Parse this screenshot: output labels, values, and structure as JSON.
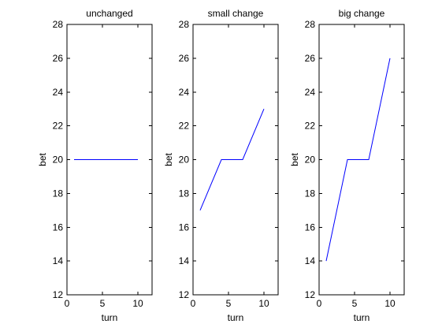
{
  "chart_data": [
    {
      "type": "line",
      "title": "unchanged",
      "xlabel": "turn",
      "ylabel": "bet",
      "xlim": [
        0,
        12
      ],
      "ylim": [
        12,
        28
      ],
      "xticks": [
        0,
        5,
        10
      ],
      "yticks": [
        12,
        14,
        16,
        18,
        20,
        22,
        24,
        26,
        28
      ],
      "grid": false,
      "series": [
        {
          "x": [
            1,
            4,
            7,
            10
          ],
          "y": [
            20,
            20,
            20,
            20
          ],
          "color": "#0000ff"
        }
      ]
    },
    {
      "type": "line",
      "title": "small change",
      "xlabel": "turn",
      "ylabel": "bet",
      "xlim": [
        0,
        12
      ],
      "ylim": [
        12,
        28
      ],
      "xticks": [
        0,
        5,
        10
      ],
      "yticks": [
        12,
        14,
        16,
        18,
        20,
        22,
        24,
        26,
        28
      ],
      "grid": false,
      "series": [
        {
          "x": [
            1,
            4,
            7,
            10
          ],
          "y": [
            17,
            20,
            20,
            23
          ],
          "color": "#0000ff"
        }
      ]
    },
    {
      "type": "line",
      "title": "big change",
      "xlabel": "turn",
      "ylabel": "bet",
      "xlim": [
        0,
        12
      ],
      "ylim": [
        12,
        28
      ],
      "xticks": [
        0,
        5,
        10
      ],
      "yticks": [
        12,
        14,
        16,
        18,
        20,
        22,
        24,
        26,
        28
      ],
      "grid": false,
      "series": [
        {
          "x": [
            1,
            4,
            7,
            10
          ],
          "y": [
            14,
            20,
            20,
            26
          ],
          "color": "#0000ff"
        }
      ]
    }
  ]
}
